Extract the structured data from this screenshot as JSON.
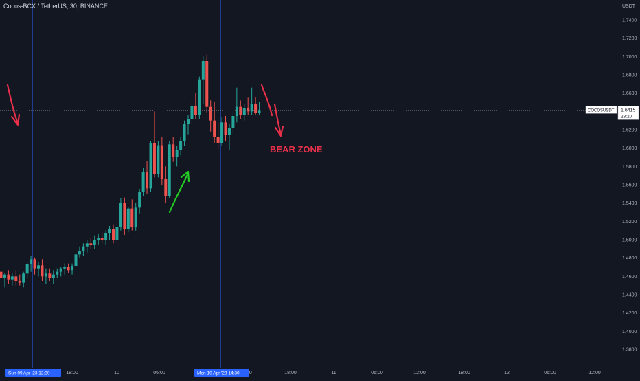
{
  "header": {
    "symbol_title": "Cocos-BCX / TetherUS, 30, BINANCE"
  },
  "colors": {
    "background": "#131722",
    "up": "#26a69a",
    "down": "#ef5350",
    "vline": "#2962ff",
    "annotation_red": "#e8304a",
    "annotation_green": "#22cc22",
    "axis_text": "#b2b5be"
  },
  "chart_data": {
    "type": "candlestick",
    "y_axis": {
      "unit": "USDT",
      "ylim": [
        1.371,
        1.755
      ],
      "ticks": [
        "1.7400",
        "1.7200",
        "1.7000",
        "1.6800",
        "1.6600",
        "1.6400",
        "1.6200",
        "1.6000",
        "1.5800",
        "1.5600",
        "1.5400",
        "1.5200",
        "1.5000",
        "1.4800",
        "1.4600",
        "1.4400",
        "1.4200",
        "1.4000",
        "1.3800"
      ]
    },
    "x_axis": {
      "interval_minutes": 30,
      "ticks": [
        "18:00",
        "10",
        "06:00",
        "12:00",
        "18:00",
        "11",
        "06:00",
        "12:00",
        "18:00",
        "12",
        "06:00",
        "12:00",
        "18:00"
      ],
      "marker_labels": [
        "Sun 09 Apr '23   12:30",
        "Mon 10 Apr '23   14:30"
      ]
    },
    "last_price": {
      "symbol": "COCOSUSDT",
      "price": "1.6415",
      "countdown": "28:20",
      "value": 1.6415
    },
    "candles": [
      {
        "o": 1.465,
        "h": 1.468,
        "l": 1.444,
        "c": 1.458
      },
      {
        "o": 1.458,
        "h": 1.464,
        "l": 1.448,
        "c": 1.462
      },
      {
        "o": 1.462,
        "h": 1.466,
        "l": 1.452,
        "c": 1.456
      },
      {
        "o": 1.456,
        "h": 1.464,
        "l": 1.45,
        "c": 1.46
      },
      {
        "o": 1.46,
        "h": 1.466,
        "l": 1.45,
        "c": 1.455
      },
      {
        "o": 1.455,
        "h": 1.462,
        "l": 1.45,
        "c": 1.453
      },
      {
        "o": 1.453,
        "h": 1.465,
        "l": 1.448,
        "c": 1.463
      },
      {
        "o": 1.463,
        "h": 1.476,
        "l": 1.458,
        "c": 1.473
      },
      {
        "o": 1.473,
        "h": 1.482,
        "l": 1.465,
        "c": 1.478
      },
      {
        "o": 1.478,
        "h": 1.48,
        "l": 1.462,
        "c": 1.468
      },
      {
        "o": 1.468,
        "h": 1.476,
        "l": 1.46,
        "c": 1.472
      },
      {
        "o": 1.472,
        "h": 1.478,
        "l": 1.455,
        "c": 1.46
      },
      {
        "o": 1.46,
        "h": 1.468,
        "l": 1.452,
        "c": 1.463
      },
      {
        "o": 1.463,
        "h": 1.468,
        "l": 1.455,
        "c": 1.458
      },
      {
        "o": 1.458,
        "h": 1.466,
        "l": 1.452,
        "c": 1.462
      },
      {
        "o": 1.462,
        "h": 1.468,
        "l": 1.458,
        "c": 1.465
      },
      {
        "o": 1.465,
        "h": 1.47,
        "l": 1.46,
        "c": 1.468
      },
      {
        "o": 1.468,
        "h": 1.474,
        "l": 1.462,
        "c": 1.47
      },
      {
        "o": 1.47,
        "h": 1.474,
        "l": 1.464,
        "c": 1.466
      },
      {
        "o": 1.466,
        "h": 1.474,
        "l": 1.462,
        "c": 1.471
      },
      {
        "o": 1.471,
        "h": 1.486,
        "l": 1.468,
        "c": 1.484
      },
      {
        "o": 1.484,
        "h": 1.492,
        "l": 1.48,
        "c": 1.488
      },
      {
        "o": 1.488,
        "h": 1.496,
        "l": 1.482,
        "c": 1.492
      },
      {
        "o": 1.492,
        "h": 1.5,
        "l": 1.486,
        "c": 1.496
      },
      {
        "o": 1.496,
        "h": 1.502,
        "l": 1.49,
        "c": 1.494
      },
      {
        "o": 1.494,
        "h": 1.504,
        "l": 1.49,
        "c": 1.5
      },
      {
        "o": 1.5,
        "h": 1.506,
        "l": 1.494,
        "c": 1.502
      },
      {
        "o": 1.502,
        "h": 1.508,
        "l": 1.496,
        "c": 1.5
      },
      {
        "o": 1.5,
        "h": 1.51,
        "l": 1.494,
        "c": 1.507
      },
      {
        "o": 1.507,
        "h": 1.515,
        "l": 1.5,
        "c": 1.512
      },
      {
        "o": 1.512,
        "h": 1.516,
        "l": 1.496,
        "c": 1.5
      },
      {
        "o": 1.5,
        "h": 1.518,
        "l": 1.496,
        "c": 1.514
      },
      {
        "o": 1.514,
        "h": 1.545,
        "l": 1.51,
        "c": 1.54
      },
      {
        "o": 1.54,
        "h": 1.546,
        "l": 1.505,
        "c": 1.512
      },
      {
        "o": 1.512,
        "h": 1.536,
        "l": 1.508,
        "c": 1.534
      },
      {
        "o": 1.534,
        "h": 1.544,
        "l": 1.51,
        "c": 1.514
      },
      {
        "o": 1.514,
        "h": 1.54,
        "l": 1.51,
        "c": 1.535
      },
      {
        "o": 1.535,
        "h": 1.555,
        "l": 1.528,
        "c": 1.552
      },
      {
        "o": 1.552,
        "h": 1.578,
        "l": 1.548,
        "c": 1.574
      },
      {
        "o": 1.574,
        "h": 1.586,
        "l": 1.55,
        "c": 1.556
      },
      {
        "o": 1.556,
        "h": 1.608,
        "l": 1.552,
        "c": 1.605
      },
      {
        "o": 1.605,
        "h": 1.64,
        "l": 1.568,
        "c": 1.572
      },
      {
        "o": 1.572,
        "h": 1.608,
        "l": 1.568,
        "c": 1.603
      },
      {
        "o": 1.603,
        "h": 1.612,
        "l": 1.56,
        "c": 1.566
      },
      {
        "o": 1.566,
        "h": 1.58,
        "l": 1.54,
        "c": 1.548
      },
      {
        "o": 1.548,
        "h": 1.608,
        "l": 1.545,
        "c": 1.604
      },
      {
        "o": 1.604,
        "h": 1.612,
        "l": 1.585,
        "c": 1.59
      },
      {
        "o": 1.59,
        "h": 1.602,
        "l": 1.58,
        "c": 1.598
      },
      {
        "o": 1.598,
        "h": 1.612,
        "l": 1.592,
        "c": 1.608
      },
      {
        "o": 1.608,
        "h": 1.63,
        "l": 1.602,
        "c": 1.626
      },
      {
        "o": 1.626,
        "h": 1.636,
        "l": 1.615,
        "c": 1.632
      },
      {
        "o": 1.632,
        "h": 1.65,
        "l": 1.626,
        "c": 1.646
      },
      {
        "o": 1.646,
        "h": 1.66,
        "l": 1.632,
        "c": 1.636
      },
      {
        "o": 1.636,
        "h": 1.678,
        "l": 1.632,
        "c": 1.675
      },
      {
        "o": 1.675,
        "h": 1.7,
        "l": 1.648,
        "c": 1.695
      },
      {
        "o": 1.695,
        "h": 1.702,
        "l": 1.638,
        "c": 1.645
      },
      {
        "o": 1.645,
        "h": 1.652,
        "l": 1.618,
        "c": 1.63
      },
      {
        "o": 1.63,
        "h": 1.65,
        "l": 1.605,
        "c": 1.612
      },
      {
        "o": 1.612,
        "h": 1.628,
        "l": 1.598,
        "c": 1.605
      },
      {
        "o": 1.605,
        "h": 1.634,
        "l": 1.602,
        "c": 1.628
      },
      {
        "o": 1.628,
        "h": 1.635,
        "l": 1.608,
        "c": 1.614
      },
      {
        "o": 1.614,
        "h": 1.626,
        "l": 1.598,
        "c": 1.622
      },
      {
        "o": 1.622,
        "h": 1.64,
        "l": 1.616,
        "c": 1.635
      },
      {
        "o": 1.635,
        "h": 1.666,
        "l": 1.628,
        "c": 1.645
      },
      {
        "o": 1.645,
        "h": 1.652,
        "l": 1.632,
        "c": 1.636
      },
      {
        "o": 1.636,
        "h": 1.648,
        "l": 1.63,
        "c": 1.644
      },
      {
        "o": 1.644,
        "h": 1.655,
        "l": 1.636,
        "c": 1.64
      },
      {
        "o": 1.64,
        "h": 1.666,
        "l": 1.636,
        "c": 1.648
      },
      {
        "o": 1.648,
        "h": 1.656,
        "l": 1.636,
        "c": 1.638
      },
      {
        "o": 1.638,
        "h": 1.65,
        "l": 1.636,
        "c": 1.6415
      }
    ],
    "annotations": [
      {
        "text": "BEAR ZONE",
        "color": "#e8304a"
      }
    ]
  }
}
